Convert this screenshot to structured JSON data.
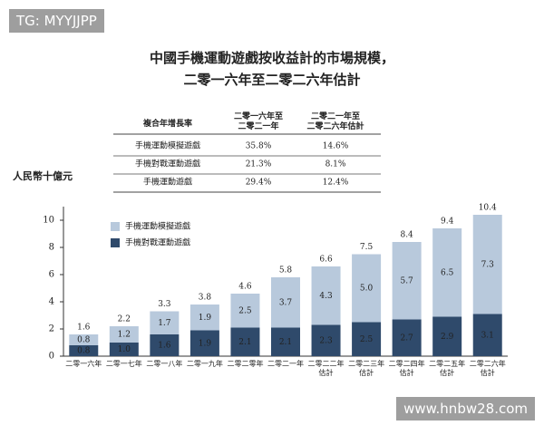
{
  "chart_data": {
    "type": "stacked_bar",
    "title": "中國手機運動遊戲按收益計的市場規模，",
    "subtitle": "二零一六年至二零二六年估計",
    "y_label": "人民幣十億元",
    "categories": [
      "二零一六年",
      "二零一七年",
      "二零一八年",
      "二零一九年",
      "二零二零年",
      "二零二一年",
      "二零二二年\n估計",
      "二零二三年\n估計",
      "二零二四年\n估計",
      "二零二五年\n估計",
      "二零二六年\n估計"
    ],
    "series": [
      {
        "name": "手機對戰運動遊戲",
        "color": "#2f4a6b",
        "values": [
          0.8,
          1.0,
          1.6,
          1.9,
          2.1,
          2.1,
          2.3,
          2.5,
          2.7,
          2.9,
          3.1
        ],
        "value_labels": [
          "0.8",
          "1.0",
          "1.6",
          "1.9",
          "2.1",
          "2.1",
          "2.3",
          "2.5",
          "2.7",
          "2.9",
          "3.1"
        ]
      },
      {
        "name": "手機運動模擬遊戲",
        "color": "#b8c9dc",
        "values": [
          0.8,
          1.2,
          1.7,
          1.9,
          2.5,
          3.7,
          4.3,
          5.0,
          5.7,
          6.5,
          7.3
        ],
        "value_labels": [
          "0.8",
          "1.2",
          "1.7",
          "1.9",
          "2.5",
          "3.7",
          "4.3",
          "5.0",
          "5.7",
          "6.5",
          "7.3"
        ]
      }
    ],
    "totals": [
      1.6,
      2.2,
      3.3,
      3.8,
      4.6,
      5.8,
      6.6,
      7.5,
      8.4,
      9.4,
      10.4
    ],
    "ylim": [
      0,
      11
    ],
    "yticks": [
      0,
      2,
      4,
      6,
      8,
      10
    ]
  },
  "table": {
    "header": [
      "複合年增長率",
      "二零一六年至\n二零二一年",
      "二零二一年至\n二零二六年估計"
    ],
    "rows": [
      [
        "手機運動模擬遊戲",
        "35.8%",
        "14.6%"
      ],
      [
        "手機對戰運動遊戲",
        "21.3%",
        "8.1%"
      ],
      [
        "手機運動遊戲",
        "29.4%",
        "12.4%"
      ]
    ]
  },
  "watermarks": [
    "TG: MYYJJPP",
    "www.hnbw28.com"
  ]
}
